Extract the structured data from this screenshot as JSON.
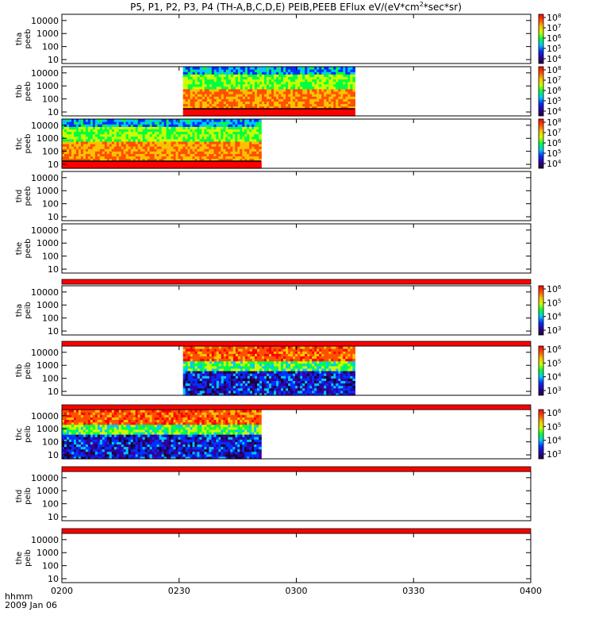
{
  "title_prefix": "P5, P1, P2, P3, P4 (TH-A,B,C,D,E) PEIB,PEEB EFlux eV/(eV*cm",
  "title_superscript": "2",
  "title_suffix": "*sec*sr)",
  "time_axis": {
    "label_line1": "hhmm",
    "label_line2": "2009 Jan 06",
    "ticks": [
      "0200",
      "0230",
      "0300",
      "0330",
      "0400"
    ],
    "range_minutes": [
      0,
      120
    ]
  },
  "energy_ticks": [
    "10000",
    "1000",
    "100",
    "10"
  ],
  "colors": {
    "overflow_band": "#ff0000",
    "axis": "#000000",
    "colorbar_scale": [
      "#1a0038",
      "#3000a0",
      "#0030ff",
      "#00c8ff",
      "#00ff40",
      "#c8ff00",
      "#ffc000",
      "#ff5000",
      "#ff0000"
    ]
  },
  "colorbars": [
    {
      "ticks": [
        {
          "base": "10",
          "exp": "8"
        },
        {
          "base": "10",
          "exp": "7"
        },
        {
          "base": "10",
          "exp": "6"
        },
        {
          "base": "10",
          "exp": "5"
        },
        {
          "base": "10",
          "exp": "4"
        }
      ]
    },
    {
      "ticks": [
        {
          "base": "10",
          "exp": "8"
        },
        {
          "base": "10",
          "exp": "7"
        },
        {
          "base": "10",
          "exp": "6"
        },
        {
          "base": "10",
          "exp": "5"
        },
        {
          "base": "10",
          "exp": "4"
        }
      ]
    },
    {
      "ticks": [
        {
          "base": "10",
          "exp": "8"
        },
        {
          "base": "10",
          "exp": "7"
        },
        {
          "base": "10",
          "exp": "6"
        },
        {
          "base": "10",
          "exp": "5"
        },
        {
          "base": "10",
          "exp": "4"
        }
      ]
    },
    {
      "ticks": [
        {
          "base": "10",
          "exp": "6"
        },
        {
          "base": "10",
          "exp": "5"
        },
        {
          "base": "10",
          "exp": "4"
        },
        {
          "base": "10",
          "exp": "3"
        }
      ]
    },
    {
      "ticks": [
        {
          "base": "10",
          "exp": "6"
        },
        {
          "base": "10",
          "exp": "5"
        },
        {
          "base": "10",
          "exp": "4"
        },
        {
          "base": "10",
          "exp": "3"
        }
      ]
    },
    {
      "ticks": [
        {
          "base": "10",
          "exp": "6"
        },
        {
          "base": "10",
          "exp": "5"
        },
        {
          "base": "10",
          "exp": "4"
        },
        {
          "base": "10",
          "exp": "3"
        }
      ]
    }
  ],
  "chart_data": {
    "type": "heatmap",
    "x_unit": "UT hhmm",
    "y_unit": "eV (log scale)",
    "ylim": [
      5,
      30000
    ],
    "panels": [
      {
        "id": "tha_peeb",
        "label1": "tha",
        "label2": "peeb",
        "species": "electron",
        "colorbar": 0,
        "data": []
      },
      {
        "id": "thb_peeb",
        "label1": "thb",
        "label2": "peeb",
        "species": "electron",
        "colorbar": 1,
        "data": [
          {
            "start": "0231",
            "end": "0315"
          }
        ]
      },
      {
        "id": "thc_peeb",
        "label1": "thc",
        "label2": "peeb",
        "species": "electron",
        "colorbar": 2,
        "data": [
          {
            "start": "0200",
            "end": "0251"
          }
        ]
      },
      {
        "id": "thd_peeb",
        "label1": "thd",
        "label2": "peeb",
        "species": "electron",
        "colorbar": null,
        "data": []
      },
      {
        "id": "the_peeb",
        "label1": "the",
        "label2": "peeb",
        "species": "electron",
        "colorbar": null,
        "data": []
      },
      {
        "id": "tha_peib",
        "label1": "tha",
        "label2": "peib",
        "species": "ion",
        "colorbar": 3,
        "data": []
      },
      {
        "id": "thb_peib",
        "label1": "thb",
        "label2": "peib",
        "species": "ion",
        "colorbar": 4,
        "data": [
          {
            "start": "0231",
            "end": "0315"
          }
        ]
      },
      {
        "id": "thc_peib",
        "label1": "thc",
        "label2": "peib",
        "species": "ion",
        "colorbar": 5,
        "data": [
          {
            "start": "0200",
            "end": "0251"
          }
        ]
      },
      {
        "id": "thd_peib",
        "label1": "thd",
        "label2": "peib",
        "species": "ion",
        "colorbar": null,
        "data": []
      },
      {
        "id": "the_peib",
        "label1": "the",
        "label2": "peib",
        "species": "ion",
        "colorbar": null,
        "data": []
      }
    ]
  }
}
